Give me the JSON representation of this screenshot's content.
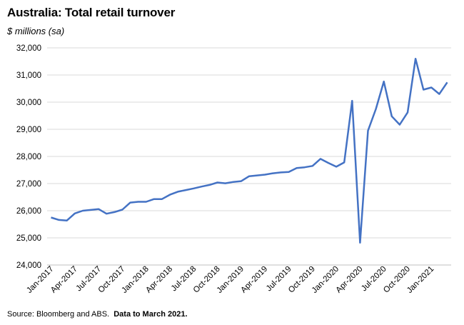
{
  "title": "Australia: Total retail turnover",
  "subtitle": "$ millions (sa)",
  "source_text": "Source: Bloomberg and ABS.",
  "source_note": "Data to March 2021.",
  "line_color": "#4472C4",
  "chart_data": {
    "type": "line",
    "title": "Australia: Total retail turnover",
    "ylabel": "$ millions (sa)",
    "ylim": [
      24000,
      32000
    ],
    "yticks": [
      "24,000",
      "25,000",
      "26,000",
      "27,000",
      "28,000",
      "29,000",
      "30,000",
      "31,000",
      "32,000"
    ],
    "ytick_values": [
      24000,
      25000,
      26000,
      27000,
      28000,
      29000,
      30000,
      31000,
      32000
    ],
    "xtick_labels": [
      "Jan-2017",
      "Apr-2017",
      "Jul-2017",
      "Oct-2017",
      "Jan-2018",
      "Apr-2018",
      "Jul-2018",
      "Oct-2018",
      "Jan-2019",
      "Apr-2019",
      "Jul-2019",
      "Oct-2019",
      "Jan-2020",
      "Apr-2020",
      "Jul-2020",
      "Oct-2020",
      "Jan-2021"
    ],
    "xtick_index": [
      0,
      3,
      6,
      9,
      12,
      15,
      18,
      21,
      24,
      27,
      30,
      33,
      36,
      39,
      42,
      45,
      48
    ],
    "grid": true,
    "x": [
      "2017-01",
      "2017-02",
      "2017-03",
      "2017-04",
      "2017-05",
      "2017-06",
      "2017-07",
      "2017-08",
      "2017-09",
      "2017-10",
      "2017-11",
      "2017-12",
      "2018-01",
      "2018-02",
      "2018-03",
      "2018-04",
      "2018-05",
      "2018-06",
      "2018-07",
      "2018-08",
      "2018-09",
      "2018-10",
      "2018-11",
      "2018-12",
      "2019-01",
      "2019-02",
      "2019-03",
      "2019-04",
      "2019-05",
      "2019-06",
      "2019-07",
      "2019-08",
      "2019-09",
      "2019-10",
      "2019-11",
      "2019-12",
      "2020-01",
      "2020-02",
      "2020-03",
      "2020-04",
      "2020-05",
      "2020-06",
      "2020-07",
      "2020-08",
      "2020-09",
      "2020-10",
      "2020-11",
      "2020-12",
      "2021-01",
      "2021-02",
      "2021-03"
    ],
    "series": [
      {
        "values": [
          25750,
          25660,
          25640,
          25900,
          26000,
          26030,
          26060,
          25890,
          25950,
          26040,
          26300,
          26330,
          26330,
          26430,
          26430,
          26590,
          26700,
          26760,
          26820,
          26890,
          26950,
          27040,
          27010,
          27060,
          27090,
          27270,
          27300,
          27330,
          27380,
          27410,
          27430,
          27570,
          27600,
          27650,
          27910,
          27760,
          27620,
          27780,
          30050,
          24820,
          28950,
          29750,
          30760,
          29480,
          29170,
          29620,
          31600,
          30460,
          30540,
          30300,
          30730
        ]
      }
    ]
  }
}
